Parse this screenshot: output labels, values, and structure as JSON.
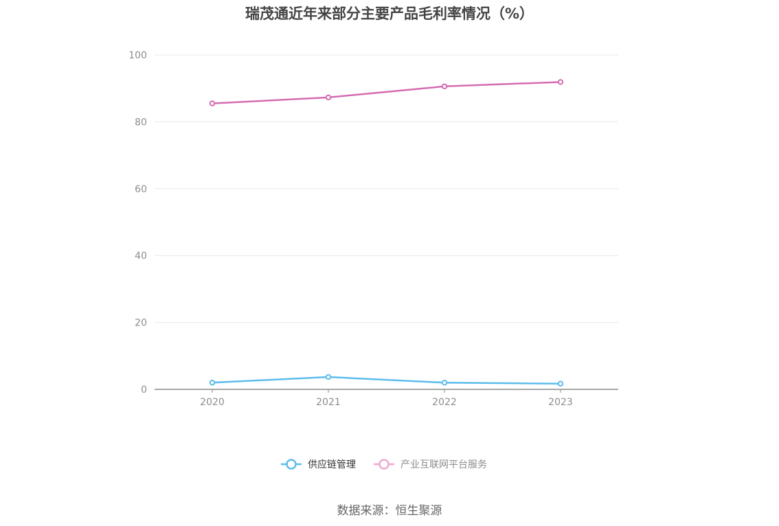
{
  "colors": {
    "supply_chain": "#5bbcec",
    "internet_platform": "#d46bb0",
    "internet_platform_legend": "#f0a8d4",
    "grid": "#e6e8ef",
    "axis": "#888888"
  },
  "chart_data": {
    "type": "line",
    "title": "瑞茂通近年来部分主要产品毛利率情况（%）",
    "xlabel": "",
    "ylabel": "",
    "categories": [
      "2020",
      "2021",
      "2022",
      "2023"
    ],
    "ylim": [
      0,
      100
    ],
    "yticks": [
      0,
      20,
      40,
      60,
      80,
      100
    ],
    "grid": true,
    "legend_position": "bottom-center",
    "series": [
      {
        "name": "供应链管理",
        "values": [
          2.0,
          3.7,
          2.0,
          1.7
        ]
      },
      {
        "name": "产业互联网平台服务",
        "values": [
          85.5,
          87.3,
          90.6,
          91.9
        ]
      }
    ]
  },
  "footer": {
    "source": "数据来源：恒生聚源"
  }
}
